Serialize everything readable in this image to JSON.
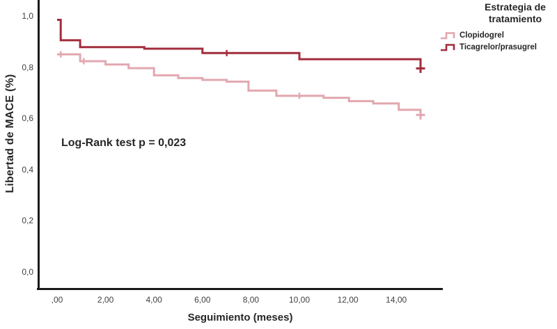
{
  "chart_data": {
    "type": "line",
    "subtype": "kaplan_meier_step_survival",
    "title": "",
    "xlabel": "Seguimiento (meses)",
    "ylabel": "Libertad de MACE (%)",
    "annotation": "Log-Rank test p = 0,023",
    "grid": false,
    "xlim": [
      -0.8,
      15.9
    ],
    "ylim": [
      0.0,
      1.06
    ],
    "x_tick_labels": [
      ",00",
      "2,00",
      "4,00",
      "6,00",
      "8,00",
      "10,00",
      "12,00",
      "14,00"
    ],
    "x_tick_values": [
      0,
      2,
      4,
      6,
      8,
      10,
      12,
      14
    ],
    "y_tick_labels": [
      "1,0",
      "0,8",
      "0,6",
      "0,4",
      "0,2",
      "0,0"
    ],
    "y_tick_values": [
      1.0,
      0.8,
      0.6,
      0.4,
      0.2,
      0.0
    ],
    "colors": {
      "clopidogrel": "#E2A7AF",
      "ticagrelor_prasugrel": "#A22C3C",
      "axis": "#1a1a1a",
      "text": "#262626",
      "tick_text": "#3f3f3f"
    },
    "legend": {
      "position": "top-right",
      "title_lines": [
        "Estrategia de",
        "tratamiento"
      ],
      "items": [
        {
          "label": "Clopidogrel",
          "color": "#E2A7AF",
          "icon": "step-line-icon"
        },
        {
          "label": "Ticagrelor/prasugrel",
          "color": "#A22C3C",
          "icon": "step-line-icon"
        }
      ]
    },
    "series": [
      {
        "name": "Clopidogrel",
        "color": "#E2A7AF",
        "points": [
          [
            0,
            0.85
          ],
          [
            0.95,
            0.823
          ],
          [
            2.0,
            0.81
          ],
          [
            2.95,
            0.796
          ],
          [
            4.0,
            0.768
          ],
          [
            5.0,
            0.757
          ],
          [
            6.0,
            0.75
          ],
          [
            7.0,
            0.743
          ],
          [
            7.9,
            0.708
          ],
          [
            9.05,
            0.688
          ],
          [
            11.0,
            0.68
          ],
          [
            12.05,
            0.667
          ],
          [
            13.05,
            0.658
          ],
          [
            14.1,
            0.633
          ],
          [
            15.0,
            0.613
          ]
        ],
        "censors": [
          [
            0.15,
            0.85,
            0
          ],
          [
            1.1,
            0.823,
            0
          ],
          [
            10.0,
            0.688,
            0
          ],
          [
            15.0,
            0.613,
            1
          ]
        ]
      },
      {
        "name": "Ticagrelor/prasugrel",
        "color": "#A22C3C",
        "points": [
          [
            0,
            0.985
          ],
          [
            0.15,
            0.905
          ],
          [
            0.95,
            0.878
          ],
          [
            3.6,
            0.872
          ],
          [
            6.0,
            0.855
          ],
          [
            10.0,
            0.831
          ],
          [
            15.0,
            0.795
          ]
        ],
        "censors": [
          [
            7.0,
            0.855,
            0
          ],
          [
            15.0,
            0.795,
            1
          ]
        ]
      }
    ]
  }
}
